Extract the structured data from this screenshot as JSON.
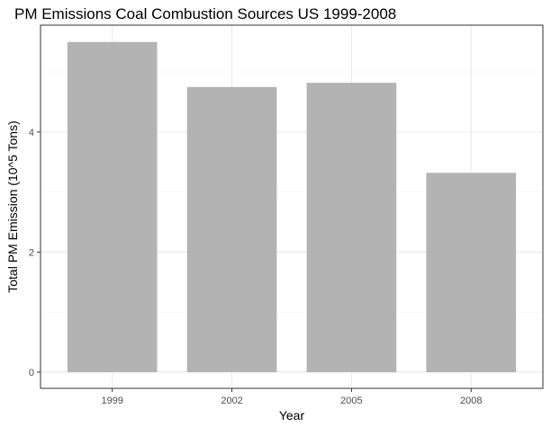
{
  "chart_data": {
    "type": "bar",
    "title": "PM Emissions Coal Combustion Sources US 1999-2008",
    "xlabel": "Year",
    "ylabel": "Total PM Emission (10^5 Tons)",
    "categories": [
      "1999",
      "2002",
      "2005",
      "2008"
    ],
    "values": [
      5.5,
      4.75,
      4.82,
      3.32
    ],
    "ylim": [
      -0.27,
      5.78
    ],
    "yticks": [
      0,
      2,
      4
    ],
    "ytick_labels": [
      "0",
      "2",
      "4"
    ],
    "grid": true,
    "legend": "none",
    "colors": {
      "bar": "#b3b3b3",
      "grid_major": "#ebebeb",
      "grid_minor": "#f5f5f5",
      "panel_border": "#333333",
      "tick": "#333333"
    }
  }
}
